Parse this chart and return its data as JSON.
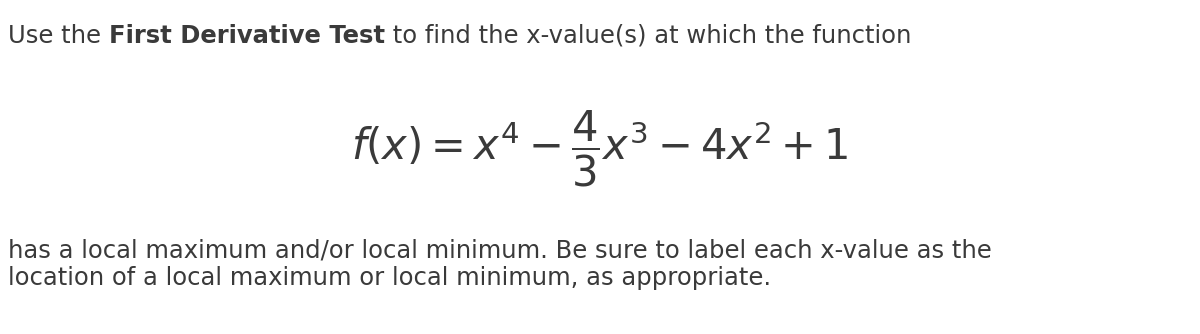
{
  "bg_color": "#ffffff",
  "text_color": "#3a3a3a",
  "line1_part1": "Use the ",
  "line1_bold": "First Derivative Test",
  "line1_part2": " to find the x-value(s) at which the function",
  "formula": "$f(x) = x^4 - \\dfrac{4}{3}x^3 - 4x^2 + 1$",
  "line3": "has a local maximum and/or local minimum. Be sure to label each x-value as the",
  "line4": "location of a local maximum or local minimum, as appropriate.",
  "fig_width": 12.0,
  "fig_height": 3.34,
  "dpi": 100,
  "font_size_text": 17.5,
  "font_size_formula": 30
}
